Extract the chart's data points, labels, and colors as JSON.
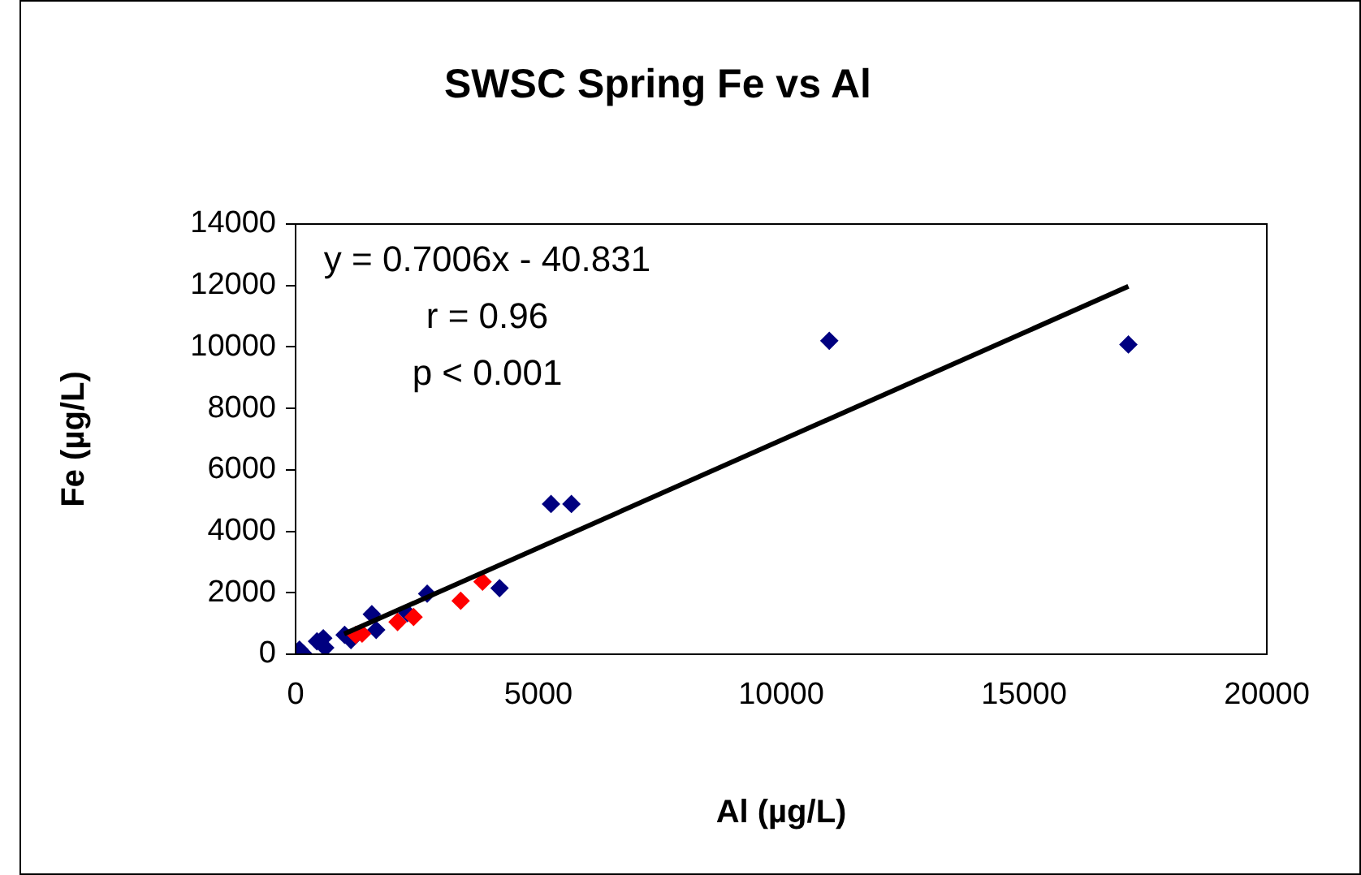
{
  "chart_data": {
    "type": "scatter",
    "title": "SWSC Spring Fe vs Al",
    "xlabel": "Al (µg/L)",
    "ylabel": "Fe (µg/L)",
    "xlim": [
      0,
      20000
    ],
    "xticks": [
      0,
      5000,
      10000,
      15000,
      20000
    ],
    "ylim": [
      0,
      14000
    ],
    "yticks": [
      0,
      2000,
      4000,
      6000,
      8000,
      10000,
      12000,
      14000
    ],
    "grid": false,
    "legend": false,
    "marker": "diamond",
    "annotations": [
      "y = 0.7006x - 40.831",
      "r = 0.96",
      "p < 0.001"
    ],
    "series": [
      {
        "color": "#000080",
        "x": [
          10990,
          17150,
          5260,
          5680,
          4200,
          2710,
          2300,
          1570,
          1660,
          1140,
          1010,
          570,
          440,
          610,
          170,
          80
        ],
        "values": [
          10200,
          10080,
          4890,
          4890,
          2150,
          1970,
          1340,
          1300,
          790,
          460,
          630,
          520,
          420,
          210,
          0,
          150
        ]
      },
      {
        "color": "#ff0000",
        "x": [
          3850,
          3400,
          2430,
          2100,
          1370,
          1240
        ],
        "values": [
          2360,
          1740,
          1210,
          1050,
          670,
          630
        ]
      },
      {
        "type": "line",
        "color": "#000000",
        "marker": "none",
        "x": [
          1000,
          17150
        ],
        "values": [
          660,
          11970
        ]
      }
    ]
  }
}
